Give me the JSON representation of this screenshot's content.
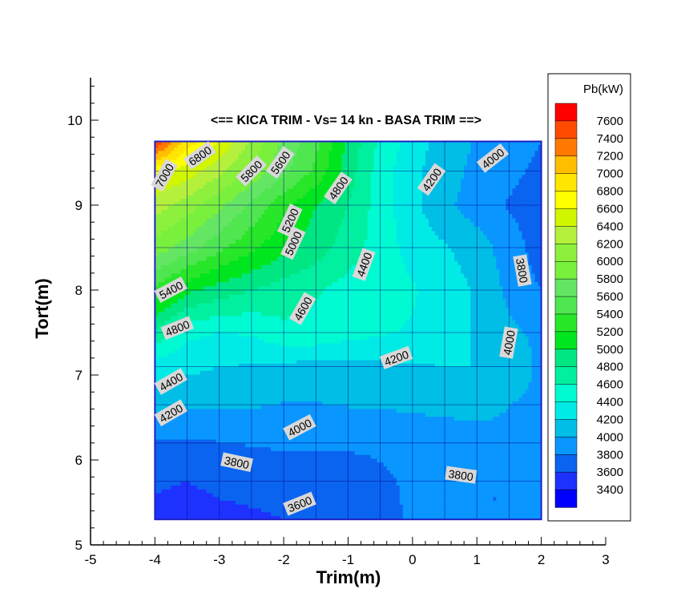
{
  "chart_data": {
    "type": "heatmap",
    "title": "<== KICA TRIM - Vs= 14 kn - BASA TRIM ==>",
    "xlabel": "Trim(m)",
    "ylabel": "Tort(m)",
    "xlim": [
      -5,
      3
    ],
    "ylim": [
      5,
      10.5
    ],
    "x_ticks": [
      "-5",
      "-4",
      "-3",
      "-2",
      "-1",
      "0",
      "1",
      "2",
      "3"
    ],
    "y_ticks": [
      "5",
      "6",
      "7",
      "8",
      "9",
      "10"
    ],
    "grid": true,
    "grid_x": [
      -4,
      -3.5,
      -3,
      -2.5,
      -2,
      -1.5,
      -1,
      -0.5,
      0,
      0.5,
      1,
      1.5,
      2
    ],
    "grid_y": [
      5.3,
      5.75,
      6.2,
      6.65,
      7.1,
      7.5,
      8.0,
      8.5,
      9.0,
      9.4,
      9.75
    ],
    "z": [
      [
        3500,
        3420,
        3500,
        3550,
        3600,
        3620,
        3650,
        3750,
        3820,
        3820,
        3800,
        3800,
        3900
      ],
      [
        3650,
        3600,
        3680,
        3700,
        3720,
        3720,
        3730,
        3780,
        3820,
        3820,
        3800,
        3800,
        3900
      ],
      [
        3780,
        3760,
        3790,
        3810,
        3820,
        3820,
        3820,
        3820,
        3850,
        3870,
        3900,
        3950,
        3950
      ],
      [
        4050,
        4020,
        4030,
        4020,
        3990,
        3990,
        4010,
        4020,
        4040,
        4060,
        4080,
        4000,
        3950
      ],
      [
        4300,
        4250,
        4200,
        4180,
        4150,
        4120,
        4120,
        4150,
        4180,
        4200,
        4200,
        4150,
        3950
      ],
      [
        4750,
        4450,
        4400,
        4420,
        4550,
        4550,
        4480,
        4420,
        4380,
        4300,
        4180,
        4050,
        3950
      ],
      [
        5350,
        5050,
        4900,
        4800,
        4700,
        4620,
        4520,
        4480,
        4420,
        4300,
        4180,
        3950,
        3800
      ],
      [
        5900,
        5700,
        5450,
        5250,
        5050,
        4900,
        4700,
        4500,
        4330,
        4220,
        4100,
        3900,
        3700
      ],
      [
        6300,
        6100,
        5850,
        5550,
        5250,
        5000,
        4800,
        4500,
        4250,
        4050,
        3900,
        3780,
        3700
      ],
      [
        6650,
        6500,
        6250,
        5950,
        5650,
        5350,
        4900,
        4500,
        4250,
        4080,
        3950,
        3850,
        3750
      ],
      [
        7600,
        6900,
        6600,
        6150,
        5750,
        5450,
        4950,
        4550,
        4300,
        4100,
        3980,
        3900,
        3800
      ]
    ],
    "levels": [
      3400,
      3600,
      3800,
      4000,
      4200,
      4400,
      4600,
      4800,
      5000,
      5200,
      5400,
      5600,
      5800,
      6000,
      6200,
      6400,
      6600,
      6800,
      7000,
      7200,
      7400,
      7600
    ],
    "legend": {
      "title": "Pb(kW)",
      "labels": [
        "7600",
        "7400",
        "7200",
        "7000",
        "6800",
        "6600",
        "6400",
        "6200",
        "6000",
        "5800",
        "5600",
        "5400",
        "5200",
        "5000",
        "4800",
        "4600",
        "4400",
        "4200",
        "4000",
        "3800",
        "3600",
        "3400"
      ],
      "placement": "right"
    },
    "contour_labels": [
      {
        "text": "7000",
        "x": -3.85,
        "y": 9.35,
        "angle": -60
      },
      {
        "text": "6800",
        "x": -3.3,
        "y": 9.58,
        "angle": -35
      },
      {
        "text": "5800",
        "x": -2.5,
        "y": 9.4,
        "angle": -45
      },
      {
        "text": "5600",
        "x": -2.05,
        "y": 9.5,
        "angle": -55
      },
      {
        "text": "4800",
        "x": -1.15,
        "y": 9.2,
        "angle": -55
      },
      {
        "text": "4200",
        "x": 0.3,
        "y": 9.3,
        "angle": -55
      },
      {
        "text": "4000",
        "x": 1.25,
        "y": 9.55,
        "angle": -38
      },
      {
        "text": "5200",
        "x": -1.9,
        "y": 8.82,
        "angle": -65
      },
      {
        "text": "5000",
        "x": -1.85,
        "y": 8.55,
        "angle": -65
      },
      {
        "text": "5400",
        "x": -3.75,
        "y": 8.0,
        "angle": -28
      },
      {
        "text": "4400",
        "x": -0.75,
        "y": 8.3,
        "angle": -70
      },
      {
        "text": "3800",
        "x": 1.7,
        "y": 8.23,
        "angle": 80
      },
      {
        "text": "4600",
        "x": -1.7,
        "y": 7.78,
        "angle": -60
      },
      {
        "text": "4800",
        "x": -3.65,
        "y": 7.55,
        "angle": -22
      },
      {
        "text": "4000",
        "x": 1.5,
        "y": 7.38,
        "angle": -80
      },
      {
        "text": "4200",
        "x": -0.25,
        "y": 7.2,
        "angle": -20
      },
      {
        "text": "4400",
        "x": -3.75,
        "y": 6.92,
        "angle": -30
      },
      {
        "text": "4200",
        "x": -3.75,
        "y": 6.55,
        "angle": -30
      },
      {
        "text": "4000",
        "x": -1.75,
        "y": 6.38,
        "angle": -28
      },
      {
        "text": "3800",
        "x": -2.73,
        "y": 5.97,
        "angle": 12
      },
      {
        "text": "3800",
        "x": 0.75,
        "y": 5.82,
        "angle": 8
      },
      {
        "text": "3600",
        "x": -1.75,
        "y": 5.48,
        "angle": -22
      }
    ]
  },
  "colors": {
    "ramp": [
      "#0000ff",
      "#1e32ff",
      "#0a64f0",
      "#0a96ff",
      "#00bee6",
      "#00ebe6",
      "#00fad2",
      "#00f0a0",
      "#00e682",
      "#00e61e",
      "#28e628",
      "#50e650",
      "#64e664",
      "#78f03c",
      "#8cf03c",
      "#b4f03c",
      "#d2f500",
      "#ffff00",
      "#ffe600",
      "#ffbe00",
      "#ff7800",
      "#ff4b00",
      "#ff0000"
    ],
    "border": "#2020c0",
    "grid": "#000080"
  }
}
